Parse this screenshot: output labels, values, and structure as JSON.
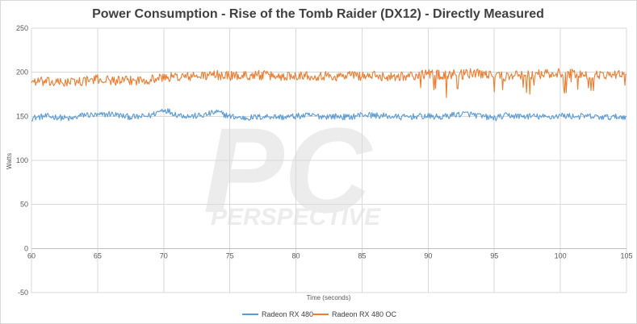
{
  "chart_data": {
    "type": "line",
    "title": "Power Consumption - Rise of the Tomb Raider (DX12) - Directly Measured",
    "xlabel": "Time (seconds)",
    "ylabel": "Watts",
    "xlim": [
      60,
      105
    ],
    "ylim": [
      -50,
      250
    ],
    "x_ticks": [
      60,
      65,
      70,
      75,
      80,
      85,
      90,
      95,
      100,
      105
    ],
    "y_ticks": [
      -50,
      0,
      50,
      100,
      150,
      200,
      250
    ],
    "grid": true,
    "legend_position": "bottom",
    "series": [
      {
        "name": "Radeon RX 480",
        "color": "#5b9bd5",
        "x": [
          60,
          61,
          62,
          63,
          64,
          65,
          66,
          67,
          68,
          69,
          70,
          71,
          72,
          73,
          74,
          75,
          76,
          77,
          78,
          79,
          80,
          81,
          82,
          83,
          84,
          85,
          86,
          87,
          88,
          89,
          90,
          91,
          92,
          93,
          94,
          95,
          96,
          97,
          98,
          99,
          100,
          101,
          102,
          103,
          104,
          105
        ],
        "y": [
          148,
          150,
          149,
          147,
          152,
          151,
          153,
          150,
          149,
          151,
          158,
          152,
          150,
          151,
          155,
          150,
          148,
          149,
          150,
          149,
          150,
          151,
          150,
          150,
          149,
          152,
          151,
          150,
          149,
          150,
          150,
          149,
          152,
          153,
          150,
          148,
          151,
          150,
          150,
          149,
          151,
          150,
          150,
          149,
          149,
          150
        ]
      },
      {
        "name": "Radeon RX 480 OC",
        "color": "#ed7d31",
        "x": [
          60,
          61,
          62,
          63,
          64,
          65,
          66,
          67,
          68,
          69,
          70,
          71,
          72,
          73,
          74,
          75,
          76,
          77,
          78,
          79,
          80,
          81,
          82,
          83,
          84,
          85,
          86,
          87,
          88,
          89,
          90,
          91,
          92,
          93,
          94,
          95,
          96,
          97,
          98,
          99,
          100,
          101,
          102,
          103,
          104,
          105
        ],
        "y": [
          190,
          189,
          188,
          189,
          190,
          192,
          191,
          190,
          191,
          192,
          194,
          195,
          195,
          196,
          197,
          196,
          196,
          197,
          196,
          195,
          197,
          196,
          196,
          195,
          197,
          196,
          196,
          195,
          196,
          196,
          198,
          197,
          198,
          199,
          198,
          196,
          195,
          197,
          198,
          198,
          199,
          198,
          196,
          197,
          198,
          198
        ]
      }
    ]
  },
  "watermark": {
    "big": "PC",
    "small": "PERSPECTIVE"
  }
}
